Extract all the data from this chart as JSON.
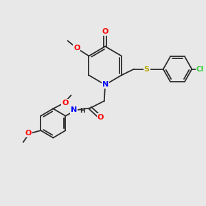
{
  "background_color": "#e8e8e8",
  "bond_color": "#2a2a2a",
  "atom_colors": {
    "N": "#0000ff",
    "O": "#ff0000",
    "S": "#bbaa00",
    "Cl": "#33cc33",
    "C": "#2a2a2a",
    "H": "#2a2a2a"
  },
  "figsize": [
    3.0,
    3.0
  ],
  "dpi": 100
}
